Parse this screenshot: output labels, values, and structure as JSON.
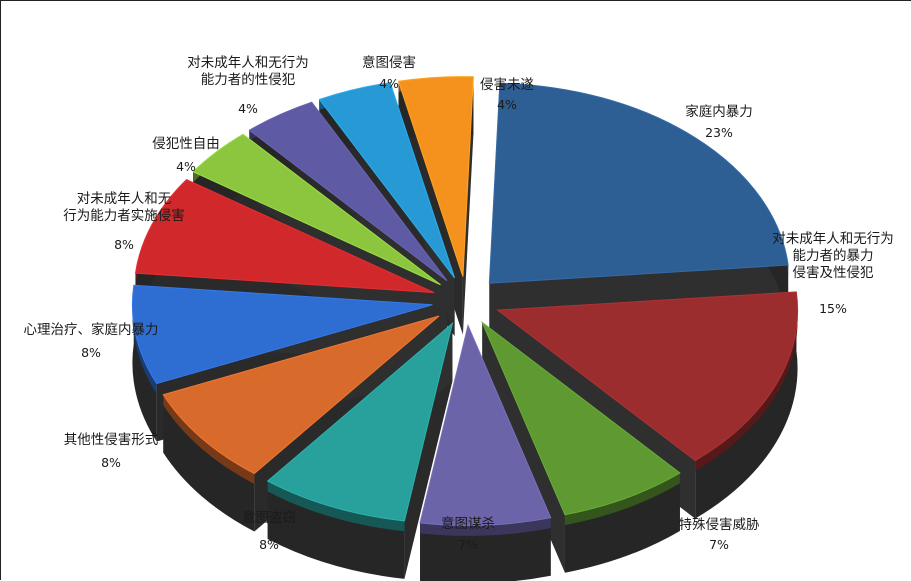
{
  "chart_data": {
    "type": "pie",
    "title": "",
    "slices": [
      {
        "name": "家庭内暴力",
        "value": 23,
        "label": "23%",
        "color": "#2e5f94"
      },
      {
        "name": "对未成年人和无行为能力者的暴力侵害及性侵犯",
        "value": 15,
        "label": "15%",
        "color": "#9b2d2f"
      },
      {
        "name": "特殊侵害威胁",
        "value": 7,
        "label": "7%",
        "color": "#5e9a31"
      },
      {
        "name": "意图谋杀",
        "value": 7,
        "label": "7%",
        "color": "#6b64a8"
      },
      {
        "name": "意图盗窃",
        "value": 8,
        "label": "8%",
        "color": "#28a09c"
      },
      {
        "name": "其他性侵害形式",
        "value": 8,
        "label": "8%",
        "color": "#d86a2c"
      },
      {
        "name": "心理治疗、家庭内暴力",
        "value": 8,
        "label": "8%",
        "color": "#2e6dd1"
      },
      {
        "name": "对未成年人和无行为能力者实施侵害",
        "value": 8,
        "label": "8%",
        "color": "#d0282b"
      },
      {
        "name": "侵犯性自由",
        "value": 4,
        "label": "4%",
        "color": "#8cc63e"
      },
      {
        "name": "对未成年人和无行为能力者的性侵犯",
        "value": 4,
        "label": "4%",
        "color": "#5e5aa3"
      },
      {
        "name": "意图侵害",
        "value": 4,
        "label": "4%",
        "color": "#279ad6"
      },
      {
        "name": "侵害未遂",
        "value": 4,
        "label": "4%",
        "color": "#f5921e"
      }
    ]
  }
}
